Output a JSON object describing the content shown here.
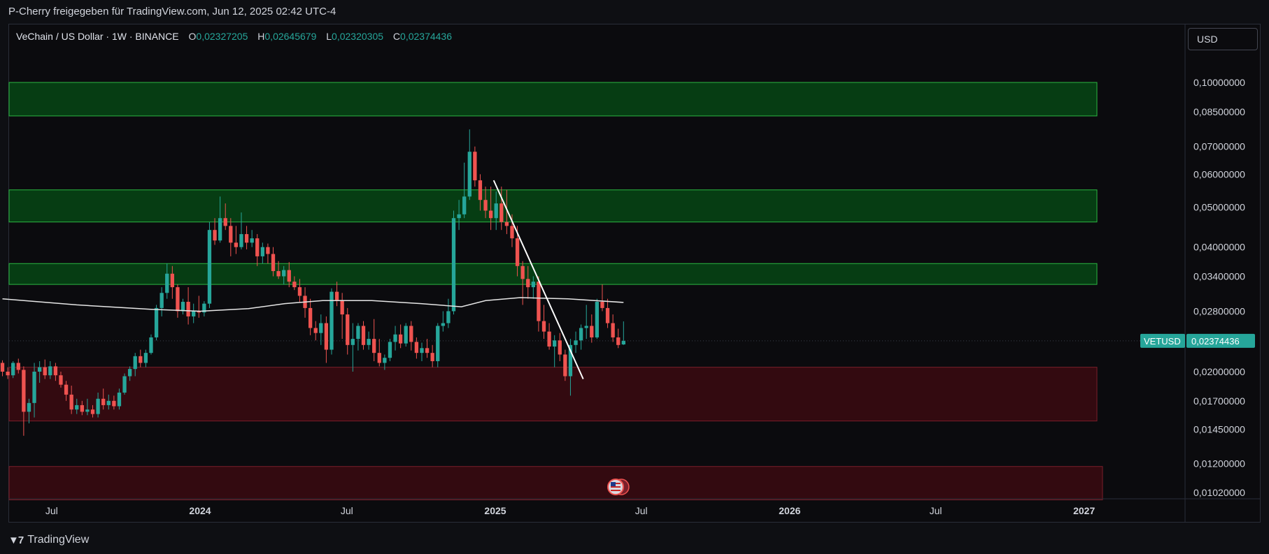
{
  "header": {
    "share_text": "P-Cherry freigegeben für TradingView.com, Jun 12, 2025 02:42 UTC-4"
  },
  "legend": {
    "symbol": "VeChain / US Dollar · 1W · BINANCE",
    "o_label": "O",
    "o_value": "0,02327205",
    "h_label": "H",
    "h_value": "0,02645679",
    "l_label": "L",
    "l_value": "0,02320305",
    "c_label": "C",
    "c_value": "0,02374436"
  },
  "currency_button": "USD",
  "footer": {
    "brand": "TradingView",
    "logo_icon": "tradingview-logo-icon"
  },
  "colors": {
    "up": "#26a69a",
    "down": "#ef5350",
    "zone_green": "#063d13",
    "zone_green_border": "#2cb642",
    "zone_red": "#330a10",
    "zone_red_border": "#7a1f2a",
    "price_tag": "#26a69a"
  },
  "chart_data": {
    "type": "candlestick",
    "scale": "log",
    "price_axis_labels": [
      "0,10000000",
      "0,08500000",
      "0,07000000",
      "0,06000000",
      "0,05000000",
      "0,04000000",
      "0,03400000",
      "0,02800000",
      "0,02000000",
      "0,01700000",
      "0,01450000",
      "0,01200000",
      "0,01020000"
    ],
    "price_axis_values": [
      0.1,
      0.085,
      0.07,
      0.06,
      0.05,
      0.04,
      0.034,
      0.028,
      0.02,
      0.017,
      0.0145,
      0.012,
      0.0102
    ],
    "time_axis_labels": [
      {
        "label": "Jul",
        "date": "2023-07-01"
      },
      {
        "label": "2024",
        "date": "2024-01-01"
      },
      {
        "label": "Jul",
        "date": "2024-07-01"
      },
      {
        "label": "2025",
        "date": "2025-01-01"
      },
      {
        "label": "Jul",
        "date": "2025-07-01"
      },
      {
        "label": "2026",
        "date": "2026-01-01"
      },
      {
        "label": "Jul",
        "date": "2026-07-01"
      },
      {
        "label": "2027",
        "date": "2027-01-01"
      }
    ],
    "current_price": {
      "symbol": "VETUSD",
      "value": 0.02374436,
      "label": "0,02374436"
    },
    "zones": [
      {
        "type": "resistance",
        "top": 0.1,
        "bottom": 0.083
      },
      {
        "type": "resistance",
        "top": 0.055,
        "bottom": 0.046
      },
      {
        "type": "resistance",
        "top": 0.0365,
        "bottom": 0.0325
      },
      {
        "type": "support",
        "top": 0.0205,
        "bottom": 0.0152
      },
      {
        "type": "support",
        "top": 0.0118,
        "bottom": 0.0098
      }
    ],
    "trendline": {
      "start": {
        "date": "2024-12-30",
        "price": 0.058
      },
      "end": {
        "date": "2025-04-20",
        "price": 0.0192
      }
    },
    "moving_average": [
      {
        "date": "2023-05-01",
        "price": 0.03
      },
      {
        "date": "2023-08-01",
        "price": 0.029
      },
      {
        "date": "2023-11-01",
        "price": 0.0283
      },
      {
        "date": "2024-01-01",
        "price": 0.028
      },
      {
        "date": "2024-03-01",
        "price": 0.0284
      },
      {
        "date": "2024-04-15",
        "price": 0.0292
      },
      {
        "date": "2024-06-01",
        "price": 0.0297
      },
      {
        "date": "2024-08-01",
        "price": 0.0297
      },
      {
        "date": "2024-10-01",
        "price": 0.0292
      },
      {
        "date": "2024-11-20",
        "price": 0.0287
      },
      {
        "date": "2024-12-20",
        "price": 0.0297
      },
      {
        "date": "2025-02-01",
        "price": 0.0302
      },
      {
        "date": "2025-04-01",
        "price": 0.03
      },
      {
        "date": "2025-06-09",
        "price": 0.0294
      }
    ],
    "candles_ohlc": [
      [
        0.021,
        0.0213,
        0.0195,
        0.02
      ],
      [
        0.02,
        0.0205,
        0.0192,
        0.0196
      ],
      [
        0.0196,
        0.0212,
        0.0193,
        0.021
      ],
      [
        0.021,
        0.0215,
        0.0198,
        0.0202
      ],
      [
        0.0202,
        0.0206,
        0.014,
        0.016
      ],
      [
        0.016,
        0.0172,
        0.015,
        0.0168
      ],
      [
        0.0168,
        0.021,
        0.0155,
        0.02
      ],
      [
        0.02,
        0.0212,
        0.0188,
        0.0205
      ],
      [
        0.0205,
        0.0214,
        0.0192,
        0.0196
      ],
      [
        0.0196,
        0.0212,
        0.0192,
        0.0206
      ],
      [
        0.0206,
        0.021,
        0.019,
        0.0196
      ],
      [
        0.0196,
        0.02,
        0.0183,
        0.0186
      ],
      [
        0.0186,
        0.019,
        0.017,
        0.0176
      ],
      [
        0.0176,
        0.0185,
        0.0158,
        0.0162
      ],
      [
        0.0162,
        0.0172,
        0.0158,
        0.0166
      ],
      [
        0.0166,
        0.017,
        0.0157,
        0.016
      ],
      [
        0.016,
        0.0172,
        0.0157,
        0.0162
      ],
      [
        0.0162,
        0.0166,
        0.0155,
        0.0158
      ],
      [
        0.0158,
        0.0178,
        0.0155,
        0.0172
      ],
      [
        0.0172,
        0.0182,
        0.0162,
        0.0166
      ],
      [
        0.0166,
        0.0176,
        0.0162,
        0.017
      ],
      [
        0.017,
        0.0175,
        0.0162,
        0.0165
      ],
      [
        0.0165,
        0.0182,
        0.0162,
        0.0178
      ],
      [
        0.0178,
        0.0198,
        0.0176,
        0.0195
      ],
      [
        0.0195,
        0.0206,
        0.019,
        0.0203
      ],
      [
        0.0203,
        0.0222,
        0.0195,
        0.0218
      ],
      [
        0.0218,
        0.0226,
        0.0205,
        0.021
      ],
      [
        0.021,
        0.0226,
        0.0205,
        0.0222
      ],
      [
        0.0222,
        0.0246,
        0.022,
        0.0242
      ],
      [
        0.0242,
        0.029,
        0.0238,
        0.0285
      ],
      [
        0.0285,
        0.032,
        0.0272,
        0.031
      ],
      [
        0.031,
        0.0365,
        0.03,
        0.0345
      ],
      [
        0.0345,
        0.036,
        0.03,
        0.032
      ],
      [
        0.032,
        0.0325,
        0.027,
        0.028
      ],
      [
        0.028,
        0.03,
        0.0275,
        0.0295
      ],
      [
        0.0295,
        0.032,
        0.026,
        0.0272
      ],
      [
        0.0272,
        0.0292,
        0.0262,
        0.028
      ],
      [
        0.028,
        0.0305,
        0.027,
        0.0278
      ],
      [
        0.0278,
        0.0296,
        0.0272,
        0.0292
      ],
      [
        0.0292,
        0.046,
        0.0285,
        0.044
      ],
      [
        0.044,
        0.047,
        0.0405,
        0.0415
      ],
      [
        0.0415,
        0.053,
        0.041,
        0.047
      ],
      [
        0.047,
        0.051,
        0.044,
        0.045
      ],
      [
        0.045,
        0.047,
        0.038,
        0.041
      ],
      [
        0.041,
        0.045,
        0.0385,
        0.04
      ],
      [
        0.04,
        0.0485,
        0.0395,
        0.043
      ],
      [
        0.043,
        0.045,
        0.0395,
        0.041
      ],
      [
        0.041,
        0.044,
        0.04,
        0.042
      ],
      [
        0.042,
        0.043,
        0.036,
        0.038
      ],
      [
        0.038,
        0.041,
        0.0365,
        0.04
      ],
      [
        0.04,
        0.0408,
        0.0365,
        0.0385
      ],
      [
        0.0385,
        0.04,
        0.034,
        0.035
      ],
      [
        0.035,
        0.037,
        0.0335,
        0.034
      ],
      [
        0.034,
        0.036,
        0.0325,
        0.0352
      ],
      [
        0.0352,
        0.0368,
        0.032,
        0.033
      ],
      [
        0.033,
        0.034,
        0.0315,
        0.032
      ],
      [
        0.032,
        0.0335,
        0.0295,
        0.0305
      ],
      [
        0.0305,
        0.032,
        0.027,
        0.0285
      ],
      [
        0.0285,
        0.03,
        0.0245,
        0.0255
      ],
      [
        0.0255,
        0.0265,
        0.0238,
        0.0248
      ],
      [
        0.0248,
        0.0275,
        0.0232,
        0.0262
      ],
      [
        0.0262,
        0.0272,
        0.021,
        0.0226
      ],
      [
        0.0226,
        0.0318,
        0.022,
        0.0312
      ],
      [
        0.0312,
        0.033,
        0.0288,
        0.0298
      ],
      [
        0.0298,
        0.031,
        0.024,
        0.0275
      ],
      [
        0.0275,
        0.0285,
        0.022,
        0.0232
      ],
      [
        0.0232,
        0.0262,
        0.02,
        0.024
      ],
      [
        0.024,
        0.0262,
        0.0225,
        0.0258
      ],
      [
        0.0258,
        0.0265,
        0.0226,
        0.0232
      ],
      [
        0.0232,
        0.025,
        0.0226,
        0.024
      ],
      [
        0.024,
        0.0268,
        0.0212,
        0.0222
      ],
      [
        0.0222,
        0.024,
        0.0206,
        0.021
      ],
      [
        0.021,
        0.022,
        0.0202,
        0.0216
      ],
      [
        0.0216,
        0.024,
        0.0212,
        0.0236
      ],
      [
        0.0236,
        0.0258,
        0.0225,
        0.0246
      ],
      [
        0.0246,
        0.026,
        0.0228,
        0.0234
      ],
      [
        0.0234,
        0.0262,
        0.023,
        0.0258
      ],
      [
        0.0258,
        0.0265,
        0.0225,
        0.0236
      ],
      [
        0.0236,
        0.0242,
        0.0215,
        0.0222
      ],
      [
        0.0222,
        0.0235,
        0.0212,
        0.0228
      ],
      [
        0.0228,
        0.024,
        0.0216,
        0.0222
      ],
      [
        0.0222,
        0.0232,
        0.0205,
        0.0212
      ],
      [
        0.0212,
        0.0262,
        0.0205,
        0.0258
      ],
      [
        0.0258,
        0.028,
        0.025,
        0.0262
      ],
      [
        0.0262,
        0.03,
        0.0255,
        0.028
      ],
      [
        0.028,
        0.049,
        0.0275,
        0.047
      ],
      [
        0.047,
        0.052,
        0.044,
        0.048
      ],
      [
        0.048,
        0.064,
        0.047,
        0.053
      ],
      [
        0.053,
        0.077,
        0.052,
        0.068
      ],
      [
        0.068,
        0.07,
        0.056,
        0.058
      ],
      [
        0.058,
        0.06,
        0.049,
        0.052
      ],
      [
        0.052,
        0.056,
        0.047,
        0.049
      ],
      [
        0.049,
        0.056,
        0.044,
        0.047
      ],
      [
        0.047,
        0.0545,
        0.044,
        0.051
      ],
      [
        0.051,
        0.056,
        0.044,
        0.046
      ],
      [
        0.046,
        0.055,
        0.043,
        0.045
      ],
      [
        0.045,
        0.048,
        0.04,
        0.042
      ],
      [
        0.042,
        0.045,
        0.034,
        0.036
      ],
      [
        0.036,
        0.037,
        0.029,
        0.0335
      ],
      [
        0.0335,
        0.036,
        0.03,
        0.032
      ],
      [
        0.032,
        0.034,
        0.03,
        0.033
      ],
      [
        0.033,
        0.034,
        0.025,
        0.0265
      ],
      [
        0.0265,
        0.029,
        0.024,
        0.025
      ],
      [
        0.025,
        0.0262,
        0.0226,
        0.023
      ],
      [
        0.023,
        0.0245,
        0.0205,
        0.0238
      ],
      [
        0.0238,
        0.0248,
        0.0212,
        0.022
      ],
      [
        0.022,
        0.0226,
        0.019,
        0.0195
      ],
      [
        0.0195,
        0.024,
        0.0175,
        0.0232
      ],
      [
        0.0232,
        0.025,
        0.0222,
        0.0238
      ],
      [
        0.0238,
        0.026,
        0.0226,
        0.0255
      ],
      [
        0.0255,
        0.029,
        0.024,
        0.0258
      ],
      [
        0.0258,
        0.0275,
        0.0235,
        0.0242
      ],
      [
        0.0242,
        0.03,
        0.024,
        0.0295
      ],
      [
        0.0295,
        0.0325,
        0.028,
        0.0285
      ],
      [
        0.0285,
        0.03,
        0.0255,
        0.0262
      ],
      [
        0.0262,
        0.0275,
        0.0236,
        0.0242
      ],
      [
        0.0242,
        0.0254,
        0.0228,
        0.0232
      ],
      [
        0.02327205,
        0.02645679,
        0.02320305,
        0.02374436
      ]
    ],
    "first_candle_date": "2023-05-01",
    "last_candle_date": "2025-06-09"
  }
}
